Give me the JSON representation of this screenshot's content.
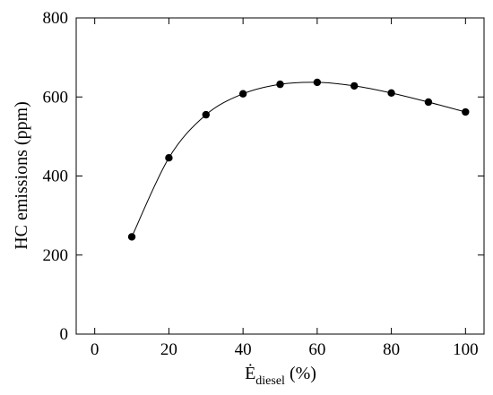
{
  "chart_data": {
    "type": "line",
    "title": "",
    "xlabel": {
      "symbol": "Ė",
      "subscript": "diesel",
      "unit": "(%)"
    },
    "ylabel": "HC emissions (ppm)",
    "xlim": [
      -5,
      105
    ],
    "ylim": [
      0,
      800
    ],
    "xticks": [
      0,
      20,
      40,
      60,
      80,
      100
    ],
    "yticks": [
      0,
      200,
      400,
      600,
      800
    ],
    "grid": false,
    "legend": "none",
    "series": [
      {
        "x": [
          10,
          20,
          30,
          40,
          50,
          60,
          70,
          80,
          90,
          100
        ],
        "y": [
          246,
          446,
          555,
          608,
          632,
          637,
          628,
          610,
          587,
          562
        ],
        "marker": "circle",
        "color": "#000000",
        "smooth": true
      }
    ]
  }
}
